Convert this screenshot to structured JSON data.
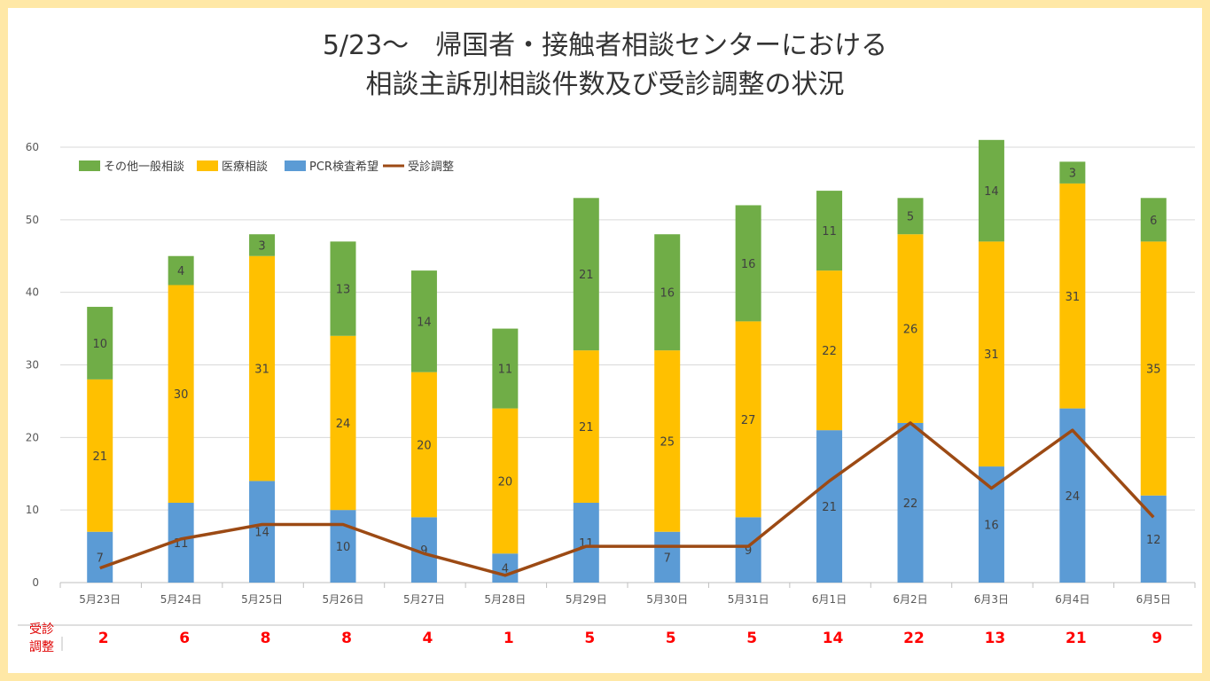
{
  "title_line1": "5/23～　帰国者・接触者相談センターにおける",
  "title_line2": "相談主訴別相談件数及び受診調整の状況",
  "colors": {
    "green": "#70ad47",
    "orange": "#ffc000",
    "blue": "#5b9bd5",
    "line": "#9c4a14",
    "red": "#ff0000"
  },
  "chart_data": {
    "type": "bar",
    "stacked": true,
    "categories": [
      "5月23日",
      "5月24日",
      "5月25日",
      "5月26日",
      "5月27日",
      "5月28日",
      "5月29日",
      "5月30日",
      "5月31日",
      "6月1日",
      "6月2日",
      "6月3日",
      "6月4日",
      "6月5日"
    ],
    "series": [
      {
        "name": "PCR検査希望",
        "color": "#5b9bd5",
        "values": [
          7,
          11,
          14,
          10,
          9,
          4,
          11,
          7,
          9,
          21,
          22,
          16,
          24,
          12
        ]
      },
      {
        "name": "医療相談",
        "color": "#ffc000",
        "values": [
          21,
          30,
          31,
          24,
          20,
          20,
          21,
          25,
          27,
          22,
          26,
          31,
          31,
          35
        ]
      },
      {
        "name": "その他一般相談",
        "color": "#70ad47",
        "values": [
          10,
          4,
          3,
          13,
          14,
          11,
          21,
          16,
          16,
          11,
          5,
          14,
          3,
          6
        ]
      }
    ],
    "line_series": {
      "name": "受診調整",
      "color": "#9c4a14",
      "values": [
        2,
        6,
        8,
        8,
        4,
        1,
        5,
        5,
        5,
        14,
        22,
        13,
        21,
        9
      ]
    },
    "legend_order": [
      "その他一般相談",
      "医療相談",
      "PCR検査希望",
      "受診調整"
    ],
    "ylim": [
      0,
      60
    ],
    "yticks": [
      0,
      10,
      20,
      30,
      40,
      50,
      60
    ],
    "grid": true,
    "legend_position": "top-left"
  },
  "bottom_row": {
    "label": "受診調整",
    "values": [
      "2",
      "6",
      "8",
      "8",
      "4",
      "1",
      "5",
      "5",
      "5",
      "14",
      "22",
      "13",
      "21",
      "9"
    ]
  }
}
